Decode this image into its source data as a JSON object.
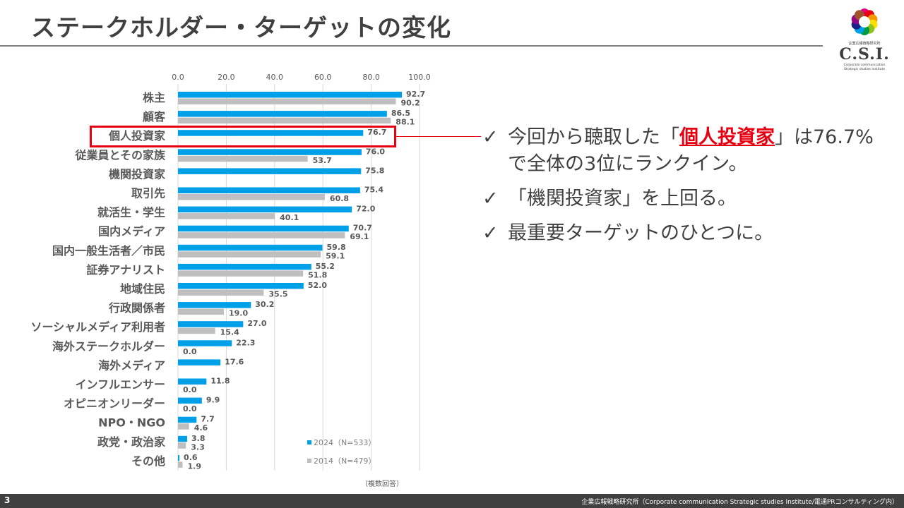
{
  "slide": {
    "title": "ステークホルダー・ターゲットの変化",
    "page_number": "3",
    "credit": "企業広報戦略研究所（Corporate communication Strategic studies Institute/電通PRコンサルティング内）",
    "logo": {
      "org_name": "企業広報戦略研究所",
      "mark": "C.S.I.",
      "sub_line1": "Corporate communication",
      "sub_line2": "Strategic studies Institute",
      "petal_colors": [
        "#e4007f",
        "#e60012",
        "#f39800",
        "#ffe100",
        "#8fc31f",
        "#009944",
        "#00a0e9",
        "#1d2088",
        "#920783",
        "#a0522d"
      ]
    },
    "bullets": [
      {
        "check": "✓",
        "before": "今回から聴取した「",
        "highlight": "個人投資家",
        "after": "」は76.7%で全体の3位にランクイン。"
      },
      {
        "check": "✓",
        "text": "「機関投資家」を上回る。"
      },
      {
        "check": "✓",
        "text": "最重要ターゲットのひとつに。"
      }
    ],
    "colors": {
      "accent_red": "#e60012",
      "series_2024": "#00a0e9",
      "series_2014": "#bfbfbf"
    }
  },
  "chart_data": {
    "type": "bar",
    "orientation": "horizontal",
    "categories": [
      "株主",
      "顧客",
      "個人投資家",
      "従業員とその家族",
      "機関投資家",
      "取引先",
      "就活生・学生",
      "国内メディア",
      "国内一般生活者／市民",
      "証券アナリスト",
      "地域住民",
      "行政関係者",
      "ソーシャルメディア利用者",
      "海外ステークホルダー",
      "海外メディア",
      "インフルエンサー",
      "オピニオンリーダー",
      "NPO・NGO",
      "政党・政治家",
      "その他"
    ],
    "series": [
      {
        "name": "2024（N=533）",
        "color": "#00a0e9",
        "values": [
          92.7,
          86.5,
          76.7,
          76.0,
          75.8,
          75.4,
          72.0,
          70.7,
          59.8,
          55.2,
          52.0,
          30.2,
          27.0,
          22.3,
          17.6,
          11.8,
          9.9,
          7.7,
          3.8,
          0.6
        ],
        "labels": [
          "92.7",
          "86.5",
          "76.7",
          "76.0",
          "75.8",
          "75.4",
          "72.0",
          "70.7",
          "59.8",
          "55.2",
          "52.0",
          "30.2",
          "27.0",
          "22.3",
          "17.6",
          "11.8",
          "9.9",
          "7.7",
          "3.8",
          "0.6"
        ]
      },
      {
        "name": "2014（N=479）",
        "color": "#bfbfbf",
        "values": [
          90.2,
          88.1,
          null,
          53.7,
          null,
          60.8,
          40.1,
          69.1,
          59.1,
          51.8,
          35.5,
          19.0,
          15.4,
          0.0,
          null,
          0.0,
          0.0,
          4.6,
          3.3,
          1.9
        ],
        "labels": [
          "90.2",
          "88.1",
          null,
          "53.7",
          null,
          "60.8",
          "40.1",
          "69.1",
          "59.1",
          "51.8",
          "35.5",
          "19.0",
          "15.4",
          "0.0",
          null,
          "0.0",
          "0.0",
          "4.6",
          "3.3",
          "1.9"
        ]
      }
    ],
    "xlim": [
      0,
      100
    ],
    "xticks": [
      "0.0",
      "20.0",
      "40.0",
      "60.0",
      "80.0",
      "100.0"
    ],
    "grid": true,
    "legend_position": "bottom-right",
    "highlight_category": "個人投資家",
    "note": "（複数回答）"
  }
}
